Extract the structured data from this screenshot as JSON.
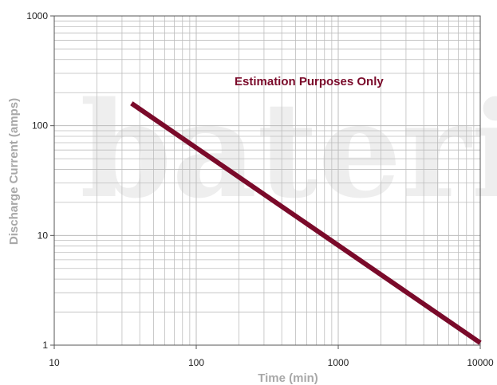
{
  "chart_data": {
    "type": "line",
    "title": "",
    "xlabel": "Time (min)",
    "ylabel": "Discharge Current (amps)",
    "x_scale": "log",
    "y_scale": "log",
    "xlim": [
      10,
      10000
    ],
    "ylim": [
      1,
      1000
    ],
    "x_ticks": [
      "10",
      "100",
      "1000",
      "10000"
    ],
    "y_ticks": [
      "1",
      "10",
      "100",
      "1000"
    ],
    "grid": true,
    "annotation": "Estimation Purposes Only",
    "watermark": "bateri",
    "series": [
      {
        "color": "#7a0a2a",
        "x": [
          35,
          10000
        ],
        "y": [
          160,
          1.05
        ]
      }
    ]
  },
  "colors": {
    "line": "#7a0a2a",
    "annotation": "#7a0a2a",
    "grid": "#bdbdbd",
    "axis_title": "#a8a8a8",
    "watermark": "#eeeeee"
  }
}
